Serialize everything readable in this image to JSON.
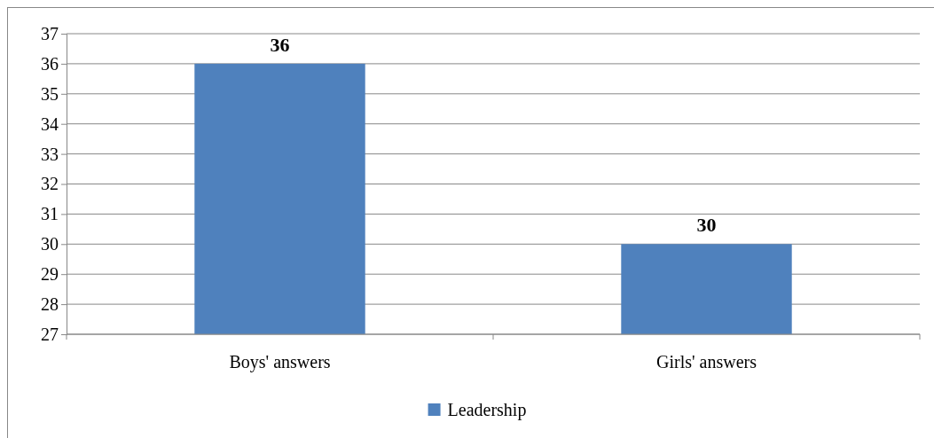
{
  "chart_data": {
    "type": "bar",
    "categories": [
      "Boys' answers",
      "Girls' answers"
    ],
    "series": [
      {
        "name": "Leadership",
        "color": "#4f81bd",
        "values": [
          36,
          30
        ]
      }
    ],
    "ylim": [
      27,
      37
    ],
    "yticks": [
      27,
      28,
      29,
      30,
      31,
      32,
      33,
      34,
      35,
      36,
      37
    ],
    "grid": "y",
    "legend": "bottom",
    "data_labels": true
  }
}
